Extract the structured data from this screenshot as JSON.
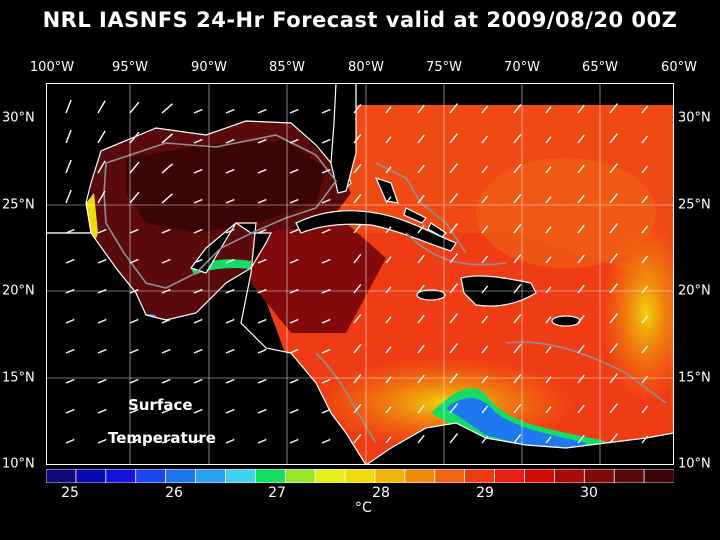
{
  "title": "NRL IASNFS  24-Hr Forecast valid at 2009/08/20 00Z",
  "longitude_labels": [
    "100°W",
    "95°W",
    "90°W",
    "85°W",
    "80°W",
    "75°W",
    "70°W",
    "65°W",
    "60°W"
  ],
  "latitude_labels": [
    "30°N",
    "25°N",
    "20°N",
    "15°N",
    "10°N"
  ],
  "annotation": {
    "line1": "Surface",
    "line2": "Temperature"
  },
  "colorbar": {
    "tick_labels": [
      "25",
      "26",
      "27",
      "28",
      "29",
      "30"
    ],
    "unit": "°C",
    "colors": [
      "#0a0a78",
      "#0a0ab4",
      "#1414dc",
      "#1e46f0",
      "#1e78f0",
      "#28a0f0",
      "#3cd2f0",
      "#14dc64",
      "#96e628",
      "#e6f014",
      "#f0dc0a",
      "#f0b40a",
      "#f08c0a",
      "#f06414",
      "#f03c14",
      "#e61e14",
      "#d20a0a",
      "#aa0a0a",
      "#820a0a",
      "#5a0a0a",
      "#3c0505"
    ]
  },
  "map_colors": {
    "background": "#000000",
    "land": "#000000",
    "ocean_warm": "#f03c14",
    "ocean_hot": "#5a0a0a",
    "ocean_cool": "#f0b40a",
    "coastline": "#ffffff",
    "isobath": "#909090",
    "grid": "#ffffff"
  }
}
